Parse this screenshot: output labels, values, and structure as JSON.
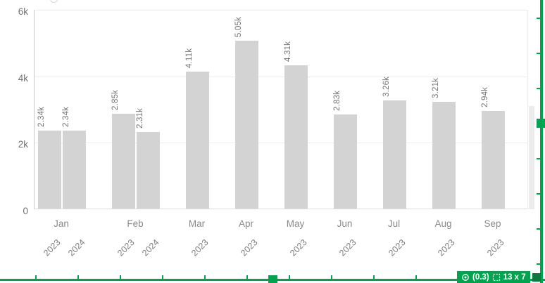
{
  "chart_data": {
    "type": "bar",
    "title": "",
    "xlabel": "",
    "ylabel": "",
    "ylim": [
      0,
      6000
    ],
    "grid": true,
    "legend": false,
    "bar_color": "#d3d3d3",
    "clipped_bar_color": "#ececec",
    "y_ticks": [
      {
        "value": 0,
        "label": "0"
      },
      {
        "value": 2000,
        "label": "2k"
      },
      {
        "value": 4000,
        "label": "4k"
      },
      {
        "value": 6000,
        "label": "6k"
      }
    ],
    "groups": [
      {
        "month": "Jan",
        "bars": [
          {
            "year": "2023",
            "value": 2340,
            "label": "2.34k"
          },
          {
            "year": "2024",
            "value": 2340,
            "label": "2.34k"
          }
        ]
      },
      {
        "month": "Feb",
        "bars": [
          {
            "year": "2023",
            "value": 2850,
            "label": "2.85k"
          },
          {
            "year": "2024",
            "value": 2310,
            "label": "2.31k"
          }
        ]
      },
      {
        "month": "Mar",
        "bars": [
          {
            "year": "2023",
            "value": 4110,
            "label": "4.11k"
          }
        ]
      },
      {
        "month": "Apr",
        "bars": [
          {
            "year": "2023",
            "value": 5050,
            "label": "5.05k"
          }
        ]
      },
      {
        "month": "May",
        "bars": [
          {
            "year": "2023",
            "value": 4310,
            "label": "4.31k"
          }
        ]
      },
      {
        "month": "Jun",
        "bars": [
          {
            "year": "2023",
            "value": 2830,
            "label": "2.83k"
          }
        ]
      },
      {
        "month": "Jul",
        "bars": [
          {
            "year": "2023",
            "value": 3260,
            "label": "3.26k"
          }
        ]
      },
      {
        "month": "Aug",
        "bars": [
          {
            "year": "2023",
            "value": 3210,
            "label": "3.21k"
          }
        ]
      },
      {
        "month": "Sep",
        "bars": [
          {
            "year": "2023",
            "value": 2940,
            "label": "2.94k"
          }
        ]
      }
    ],
    "clipped_next_bar": {
      "approx_value": 3100,
      "label": ""
    }
  },
  "selection_overlay": {
    "color": "#00a44f",
    "corner_color": "#0b7a3e",
    "badge": {
      "zoom_text": "(0.3)",
      "grid_text": "13 x 7"
    }
  }
}
